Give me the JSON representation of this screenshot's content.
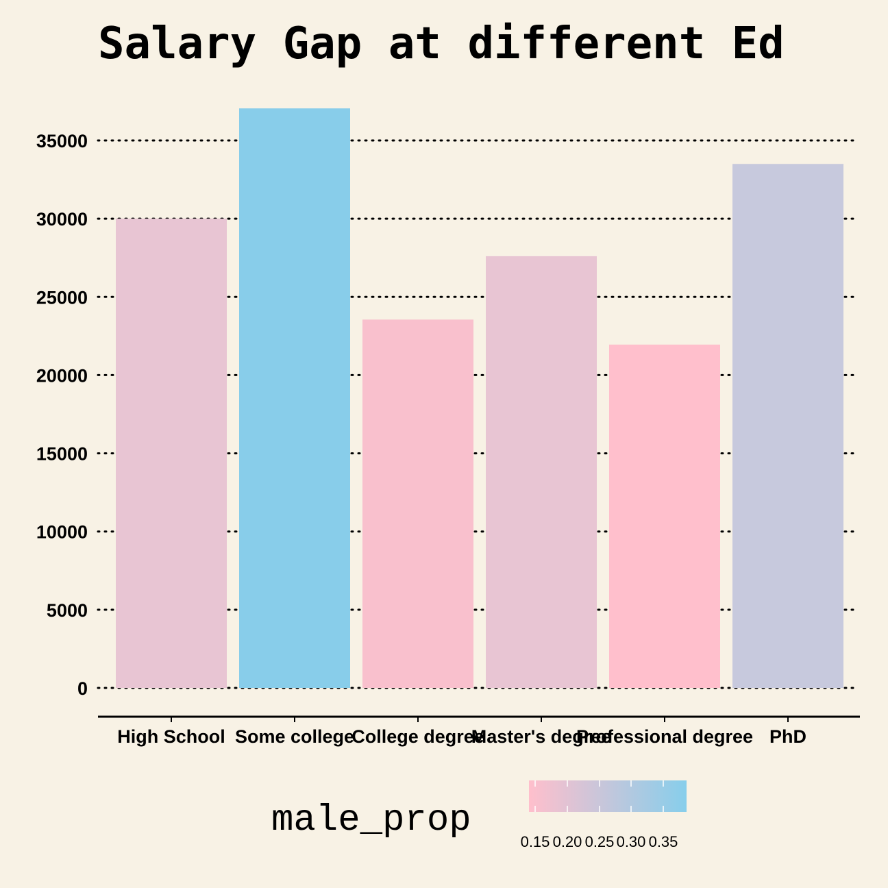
{
  "chart_data": {
    "type": "bar",
    "title": "Salary Gap at different Ed",
    "xlabel": "",
    "ylabel": "",
    "categories": [
      "High School",
      "Some college",
      "College degree",
      "Master's degree",
      "Professional degree",
      "PhD"
    ],
    "values": [
      30000,
      37050,
      23550,
      27600,
      21950,
      33500
    ],
    "male_prop": [
      0.24,
      0.37,
      0.17,
      0.24,
      0.14,
      0.3
    ],
    "bar_colors": [
      "#e8c5d3",
      "#88cdea",
      "#f9c0cd",
      "#e8c5d3",
      "#ffbfcc",
      "#c7c9dd"
    ],
    "ylim": [
      -1800,
      37200
    ],
    "yticks": [
      0,
      5000,
      10000,
      15000,
      20000,
      25000,
      30000,
      35000
    ],
    "grid": "horizontal dotted",
    "legend": {
      "title": "male_prop",
      "placement": "bottom",
      "tick_labels": [
        "0.15",
        "0.20",
        "0.25",
        "0.30",
        "0.35"
      ],
      "color_low": "#ffbfcc",
      "color_high": "#87ceeb"
    },
    "background": "#f8f2e5"
  }
}
